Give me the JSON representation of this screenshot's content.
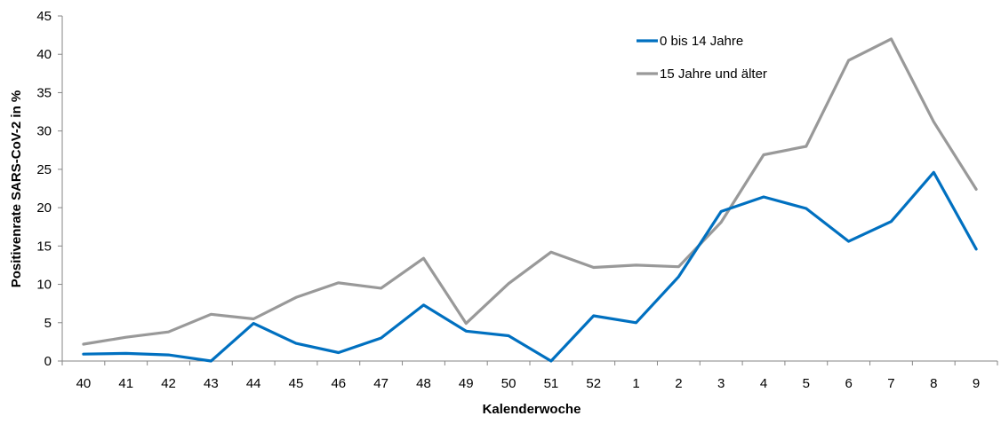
{
  "chart_data": {
    "type": "line",
    "title": "",
    "xlabel": "Kalenderwoche",
    "ylabel": "Positivenrate SARS-CoV-2 in %",
    "categories": [
      "40",
      "41",
      "42",
      "43",
      "44",
      "45",
      "46",
      "47",
      "48",
      "49",
      "50",
      "51",
      "52",
      "1",
      "2",
      "3",
      "4",
      "5",
      "6",
      "7",
      "8",
      "9"
    ],
    "ylim": [
      0,
      45
    ],
    "yticks": [
      0,
      5,
      10,
      15,
      20,
      25,
      30,
      35,
      40,
      45
    ],
    "grid": false,
    "legend_position": "top-right",
    "series": [
      {
        "name": "0 bis 14 Jahre",
        "color": "#0070C0",
        "values": [
          0.9,
          1.0,
          0.8,
          0.0,
          4.9,
          2.3,
          1.1,
          3.0,
          7.3,
          3.9,
          3.3,
          0.0,
          5.9,
          5.0,
          11.0,
          19.5,
          21.4,
          19.9,
          15.6,
          18.2,
          24.6,
          14.6
        ]
      },
      {
        "name": "15 Jahre und älter",
        "color": "#999999",
        "values": [
          2.2,
          3.1,
          3.8,
          6.1,
          5.5,
          8.3,
          10.2,
          9.5,
          13.4,
          4.9,
          10.1,
          14.2,
          12.2,
          12.5,
          12.3,
          18.1,
          26.9,
          28.0,
          39.2,
          42.0,
          31.2,
          22.4
        ]
      }
    ]
  }
}
